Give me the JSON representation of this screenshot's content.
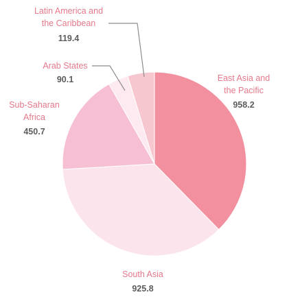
{
  "chart_data": {
    "type": "pie",
    "title": "",
    "start_angle_deg": 0,
    "direction": "clockwise",
    "slices": [
      {
        "key": "east_asia",
        "name_lines": [
          "East Asia and",
          "the Pacific"
        ],
        "value": "958.2",
        "numeric_value": 958.2,
        "color": "#f2909f"
      },
      {
        "key": "south_asia",
        "name_lines": [
          "South Asia"
        ],
        "value": "925.8",
        "numeric_value": 925.8,
        "color": "#fbe4ec"
      },
      {
        "key": "sub_saharan",
        "name_lines": [
          "Sub-Saharan",
          "Africa"
        ],
        "value": "450.7",
        "numeric_value": 450.7,
        "color": "#f6bfd3"
      },
      {
        "key": "arab_states",
        "name_lines": [
          "Arab States"
        ],
        "value": "90.1",
        "numeric_value": 90.1,
        "color": "#fde9f0"
      },
      {
        "key": "latin_america",
        "name_lines": [
          "Latin America and",
          "the Caribbean"
        ],
        "value": "119.4",
        "numeric_value": 119.4,
        "color": "#f7c7cf"
      }
    ],
    "colors": {
      "label_text": "#e5788a",
      "value_text": "#5c5c5c",
      "leader_line": "#8c8c8c",
      "background": "#ffffff"
    }
  }
}
